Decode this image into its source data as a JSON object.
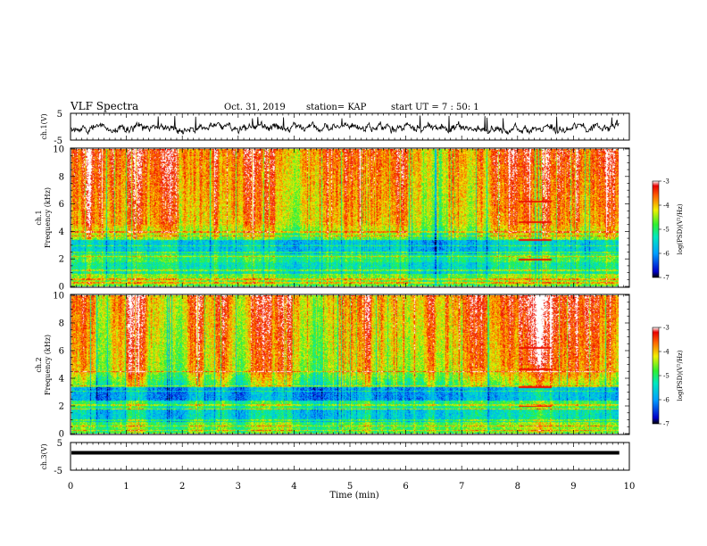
{
  "header": {
    "title": "VLF Spectra",
    "date": "Oct. 31, 2019",
    "station": "station= KAP",
    "start": "start  UT =   7 : 50: 1"
  },
  "chart_data": [
    {
      "type": "line",
      "panel": "ch1-waveform",
      "ylabel": "ch.1(V)",
      "yticks": [
        "5",
        "-5"
      ],
      "ylim": [
        -5,
        5
      ],
      "xlim": [
        0,
        10
      ],
      "description_level": "noisy signal around 0 V"
    },
    {
      "type": "heatmap",
      "panel": "ch1-spectrogram",
      "ylabel_line1": "ch.1",
      "ylabel_line2": "Frequency  (kHz)",
      "yticks": [
        "0",
        "2",
        "4",
        "6",
        "8",
        "10"
      ],
      "ylim": [
        0,
        10
      ],
      "xlim": [
        0,
        10
      ],
      "colorbar": {
        "label": "log(PSD)(V²/Hz)",
        "ticks": [
          "-3",
          "-4",
          "-5",
          "-6",
          "-7"
        ],
        "range": [
          -7,
          -3
        ]
      }
    },
    {
      "type": "heatmap",
      "panel": "ch2-spectrogram",
      "ylabel_line1": "ch.2",
      "ylabel_line2": "Frequency  (kHz)",
      "yticks": [
        "0",
        "2",
        "4",
        "6",
        "8",
        "10"
      ],
      "ylim": [
        0,
        10
      ],
      "xlim": [
        0,
        10
      ],
      "colorbar": {
        "label": "log(PSD)(V²/Hz)",
        "ticks": [
          "-3",
          "-4",
          "-5",
          "-6",
          "-7"
        ],
        "range": [
          -7,
          -3
        ]
      }
    },
    {
      "type": "line",
      "panel": "ch3-waveform",
      "ylabel": "ch.3(V)",
      "yticks": [
        "5",
        "-5"
      ],
      "ylim": [
        -5,
        5
      ],
      "xlim": [
        0,
        10
      ],
      "flat_value": 0
    }
  ],
  "xaxis": {
    "label": "Time  (min)",
    "ticks": [
      "0",
      "1",
      "2",
      "3",
      "4",
      "5",
      "6",
      "7",
      "8",
      "9",
      "10"
    ],
    "range": [
      0,
      10
    ],
    "data_end": 9.82
  }
}
